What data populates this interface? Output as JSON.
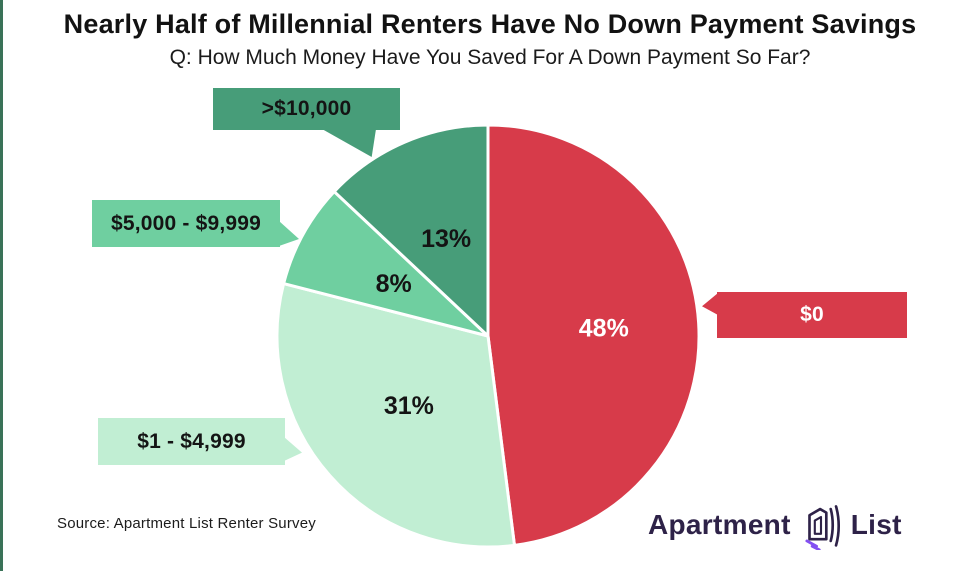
{
  "title": "Nearly Half of Millennial Renters Have No Down Payment Savings",
  "subtitle": "Q: How Much Money Have You Saved For A Down Payment So Far?",
  "source": "Source: Apartment List Renter Survey",
  "logo": {
    "word1": "Apartment",
    "word2": "List",
    "icon": "apartment-list-house-icon",
    "text_color": "#2e2248",
    "accent_color": "#8350f2"
  },
  "accent_bar_color": "#3a7258",
  "chart_data": {
    "type": "pie",
    "title": "Nearly Half of Millennial Renters Have No Down Payment Savings",
    "subtitle": "Q: How Much Money Have You Saved For A Down Payment So Far?",
    "categories": [
      "$0",
      "$1 - $4,999",
      "$5,000 - $9,999",
      ">$10,000"
    ],
    "values": [
      48,
      31,
      8,
      13
    ],
    "unit": "%",
    "labels": [
      "48%",
      "31%",
      "8%",
      "13%"
    ],
    "colors": [
      "#d73b4a",
      "#c1eed3",
      "#6fcfa0",
      "#479d79"
    ],
    "label_colors": [
      "#ffffff",
      "#141414",
      "#141414",
      "#141414"
    ],
    "label_radius_frac": [
      0.55,
      0.5,
      0.51,
      0.5
    ],
    "start_angle_deg": 0,
    "direction": "clockwise",
    "slice_border_color": "#ffffff",
    "legend_position": "callouts",
    "callouts": [
      {
        "text": ">$10,000",
        "target": ">$10,000",
        "bg": "#479d79",
        "text_color": "#141414"
      },
      {
        "text": "$5,000 - $9,999",
        "target": "$5,000 - $9,999",
        "bg": "#6fcfa0",
        "text_color": "#141414"
      },
      {
        "text": "$1 - $4,999",
        "target": "$1 - $4,999",
        "bg": "#c1eed3",
        "text_color": "#141414"
      },
      {
        "text": "$0",
        "target": "$0",
        "bg": "#d73b4a",
        "text_color": "#ffffff"
      }
    ]
  }
}
